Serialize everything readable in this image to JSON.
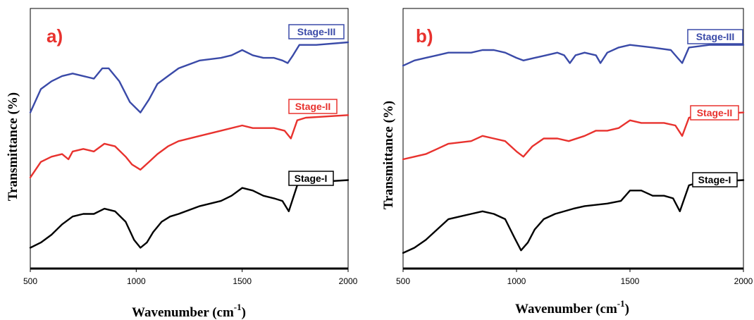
{
  "chart_data": [
    {
      "type": "line",
      "panel_label": "a)",
      "xlabel": "Wavenumber (cm",
      "xlabel_sup": "-1",
      "xlabel_end": ")",
      "ylabel": "Transmittance (%)",
      "xlim": [
        500,
        2000
      ],
      "ylim": [
        0,
        100
      ],
      "x_ticks": [
        "500",
        "1000",
        "1500",
        "2000"
      ],
      "colors": {
        "Stage-III": "#3a4aa8",
        "Stage-II": "#e8322e",
        "Stage-I": "#000000"
      },
      "series": [
        {
          "name": "Stage-III",
          "points": [
            [
              500,
              60
            ],
            [
              550,
              69
            ],
            [
              600,
              72
            ],
            [
              650,
              74
            ],
            [
              700,
              75
            ],
            [
              750,
              74
            ],
            [
              800,
              73
            ],
            [
              840,
              77
            ],
            [
              870,
              77
            ],
            [
              920,
              72
            ],
            [
              970,
              64
            ],
            [
              1020,
              60
            ],
            [
              1060,
              65
            ],
            [
              1100,
              71
            ],
            [
              1150,
              74
            ],
            [
              1200,
              77
            ],
            [
              1300,
              80
            ],
            [
              1400,
              81
            ],
            [
              1450,
              82
            ],
            [
              1500,
              84
            ],
            [
              1550,
              82
            ],
            [
              1600,
              81
            ],
            [
              1650,
              81
            ],
            [
              1690,
              80
            ],
            [
              1715,
              79
            ],
            [
              1740,
              82
            ],
            [
              1770,
              86
            ],
            [
              1850,
              86
            ],
            [
              2000,
              87
            ]
          ]
        },
        {
          "name": "Stage-II",
          "points": [
            [
              500,
              35
            ],
            [
              550,
              41
            ],
            [
              600,
              43
            ],
            [
              650,
              44
            ],
            [
              680,
              42
            ],
            [
              700,
              45
            ],
            [
              750,
              46
            ],
            [
              800,
              45
            ],
            [
              850,
              48
            ],
            [
              900,
              47
            ],
            [
              950,
              43
            ],
            [
              980,
              40
            ],
            [
              1020,
              38
            ],
            [
              1060,
              41
            ],
            [
              1100,
              44
            ],
            [
              1150,
              47
            ],
            [
              1200,
              49
            ],
            [
              1300,
              51
            ],
            [
              1400,
              53
            ],
            [
              1500,
              55
            ],
            [
              1550,
              54
            ],
            [
              1600,
              54
            ],
            [
              1650,
              54
            ],
            [
              1700,
              53
            ],
            [
              1730,
              50
            ],
            [
              1760,
              57
            ],
            [
              1800,
              58
            ],
            [
              2000,
              59
            ]
          ]
        },
        {
          "name": "Stage-I",
          "points": [
            [
              500,
              8
            ],
            [
              550,
              10
            ],
            [
              600,
              13
            ],
            [
              650,
              17
            ],
            [
              700,
              20
            ],
            [
              750,
              21
            ],
            [
              800,
              21
            ],
            [
              850,
              23
            ],
            [
              900,
              22
            ],
            [
              950,
              18
            ],
            [
              990,
              11
            ],
            [
              1020,
              8
            ],
            [
              1050,
              10
            ],
            [
              1080,
              14
            ],
            [
              1120,
              18
            ],
            [
              1160,
              20
            ],
            [
              1200,
              21
            ],
            [
              1300,
              24
            ],
            [
              1400,
              26
            ],
            [
              1450,
              28
            ],
            [
              1500,
              31
            ],
            [
              1550,
              30
            ],
            [
              1600,
              28
            ],
            [
              1650,
              27
            ],
            [
              1690,
              26
            ],
            [
              1720,
              22
            ],
            [
              1760,
              32
            ],
            [
              1800,
              33
            ],
            [
              2000,
              34
            ]
          ]
        }
      ]
    },
    {
      "type": "line",
      "panel_label": "b)",
      "xlabel": "Wavenumber (cm",
      "xlabel_sup": "-1",
      "xlabel_end": ")",
      "ylabel": "Transmittance (%)",
      "xlim": [
        500,
        2000
      ],
      "ylim": [
        0,
        100
      ],
      "x_ticks": [
        "500",
        "1000",
        "1500",
        "2000"
      ],
      "colors": {
        "Stage-III": "#3a4aa8",
        "Stage-II": "#e8322e",
        "Stage-I": "#000000"
      },
      "series": [
        {
          "name": "Stage-III",
          "points": [
            [
              500,
              78
            ],
            [
              550,
              80
            ],
            [
              600,
              81
            ],
            [
              650,
              82
            ],
            [
              700,
              83
            ],
            [
              800,
              83
            ],
            [
              850,
              84
            ],
            [
              900,
              84
            ],
            [
              950,
              83
            ],
            [
              1000,
              81
            ],
            [
              1030,
              80
            ],
            [
              1080,
              81
            ],
            [
              1130,
              82
            ],
            [
              1180,
              83
            ],
            [
              1210,
              82
            ],
            [
              1235,
              79
            ],
            [
              1260,
              82
            ],
            [
              1300,
              83
            ],
            [
              1350,
              82
            ],
            [
              1370,
              79
            ],
            [
              1400,
              83
            ],
            [
              1450,
              85
            ],
            [
              1500,
              86
            ],
            [
              1600,
              85
            ],
            [
              1680,
              84
            ],
            [
              1710,
              81
            ],
            [
              1730,
              79
            ],
            [
              1760,
              85
            ],
            [
              1850,
              86
            ],
            [
              2000,
              86
            ]
          ]
        },
        {
          "name": "Stage-II",
          "points": [
            [
              500,
              42
            ],
            [
              550,
              43
            ],
            [
              600,
              44
            ],
            [
              650,
              46
            ],
            [
              700,
              48
            ],
            [
              800,
              49
            ],
            [
              850,
              51
            ],
            [
              900,
              50
            ],
            [
              950,
              49
            ],
            [
              1000,
              45
            ],
            [
              1030,
              43
            ],
            [
              1070,
              47
            ],
            [
              1120,
              50
            ],
            [
              1180,
              50
            ],
            [
              1230,
              49
            ],
            [
              1300,
              51
            ],
            [
              1350,
              53
            ],
            [
              1400,
              53
            ],
            [
              1450,
              54
            ],
            [
              1500,
              57
            ],
            [
              1550,
              56
            ],
            [
              1600,
              56
            ],
            [
              1650,
              56
            ],
            [
              1700,
              55
            ],
            [
              1730,
              51
            ],
            [
              1760,
              58
            ],
            [
              1800,
              59
            ],
            [
              2000,
              60
            ]
          ]
        },
        {
          "name": "Stage-I",
          "points": [
            [
              500,
              6
            ],
            [
              550,
              8
            ],
            [
              600,
              11
            ],
            [
              650,
              15
            ],
            [
              700,
              19
            ],
            [
              750,
              20
            ],
            [
              800,
              21
            ],
            [
              850,
              22
            ],
            [
              900,
              21
            ],
            [
              950,
              19
            ],
            [
              990,
              12
            ],
            [
              1020,
              7
            ],
            [
              1050,
              10
            ],
            [
              1080,
              15
            ],
            [
              1120,
              19
            ],
            [
              1170,
              21
            ],
            [
              1250,
              23
            ],
            [
              1300,
              24
            ],
            [
              1400,
              25
            ],
            [
              1460,
              26
            ],
            [
              1500,
              30
            ],
            [
              1550,
              30
            ],
            [
              1600,
              28
            ],
            [
              1650,
              28
            ],
            [
              1690,
              27
            ],
            [
              1720,
              22
            ],
            [
              1760,
              32
            ],
            [
              1800,
              33
            ],
            [
              2000,
              34
            ]
          ]
        }
      ]
    }
  ],
  "legend": {
    "a": {
      "stage3": "Stage-III",
      "stage2": "Stage-II",
      "stage1": "Stage-I"
    },
    "b": {
      "stage3": "Stage-III",
      "stage2": "Stage-II",
      "stage1": "Stage-I"
    }
  }
}
